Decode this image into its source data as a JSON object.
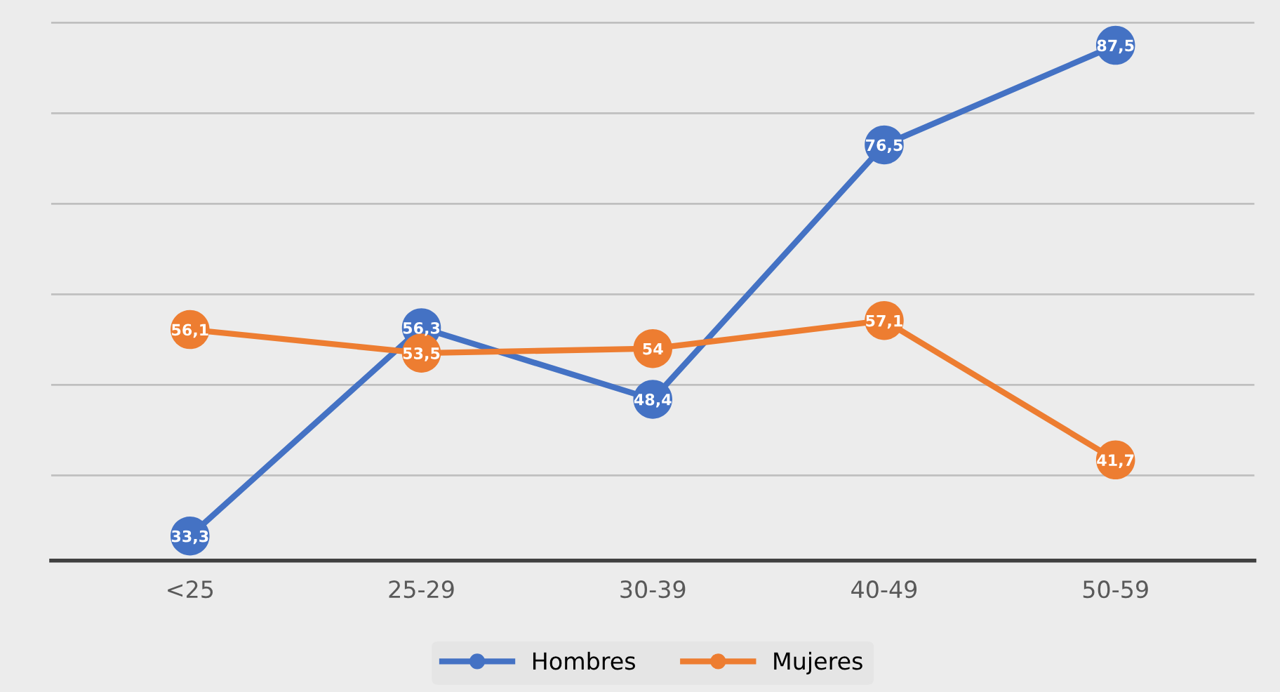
{
  "chart_data": {
    "type": "line",
    "categories": [
      "<25",
      "25-29",
      "30-39",
      "40-49",
      "50-59"
    ],
    "series": [
      {
        "name": "Hombres",
        "color": "#4472c4",
        "values": [
          33.3,
          56.3,
          48.4,
          76.5,
          87.5
        ],
        "value_labels": [
          "33,3",
          "56,3",
          "48,4",
          "76,5",
          "87,5"
        ]
      },
      {
        "name": "Mujeres",
        "color": "#ed7d31",
        "values": [
          56.1,
          53.5,
          54,
          57.1,
          41.7
        ],
        "value_labels": [
          "56,1",
          "53,5",
          "54",
          "57,1",
          "41,7"
        ]
      }
    ],
    "tick_labels": "x",
    "grid": "y",
    "legend": "bottom",
    "marker": "circle",
    "line_style": "solid"
  }
}
